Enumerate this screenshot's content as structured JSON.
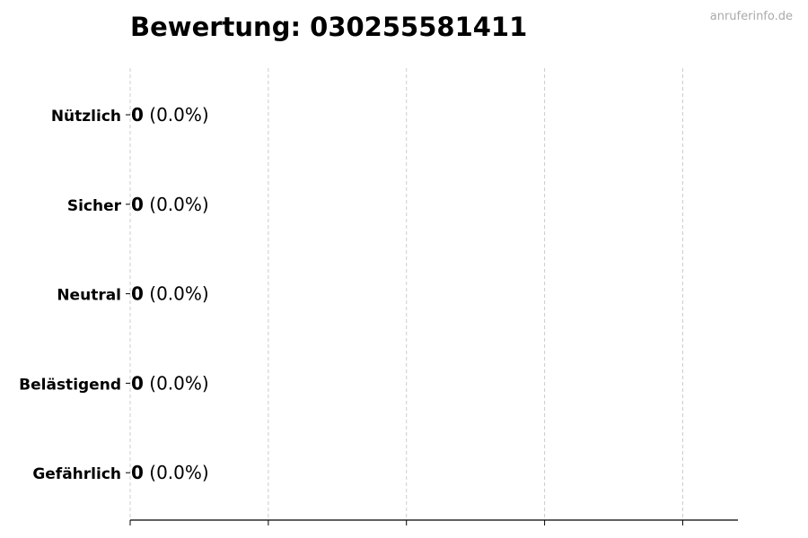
{
  "chart_data": {
    "type": "bar",
    "orientation": "horizontal",
    "title": "Bewertung: 030255581411",
    "watermark": "anruferinfo.de",
    "categories": [
      "Nützlich",
      "Sicher",
      "Neutral",
      "Belästigend",
      "Gefährlich"
    ],
    "values": [
      0,
      0,
      0,
      0,
      0
    ],
    "percent_labels": [
      "(0.0%)",
      "(0.0%)",
      "(0.0%)",
      "(0.0%)",
      "(0.0%)"
    ],
    "xlim": [
      0,
      4.4
    ],
    "x_ticks_count": 5,
    "x_tick_labels_shown": false,
    "grid": "x-dashed",
    "bar_edge_color": "#000000",
    "grid_color": "#cccccc"
  }
}
